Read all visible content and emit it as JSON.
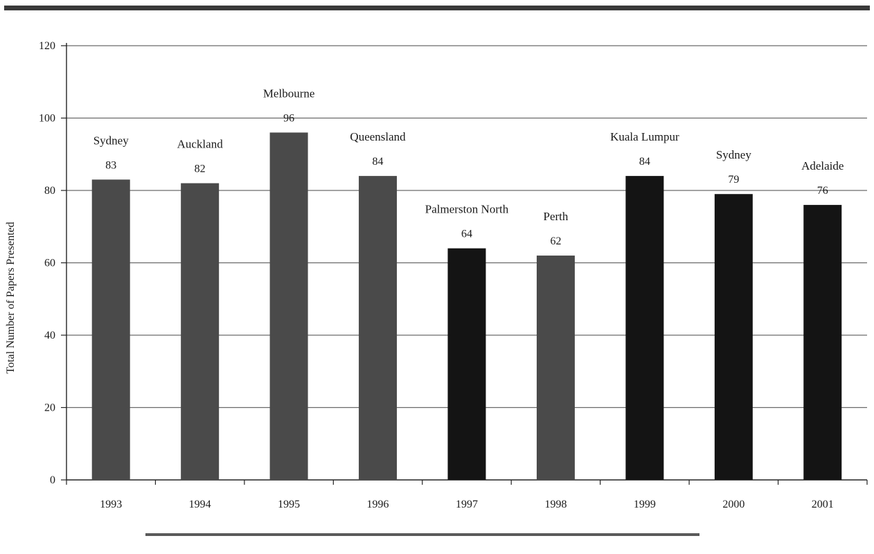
{
  "chart_data": {
    "type": "bar",
    "title": "",
    "xlabel": "",
    "ylabel": "Total Number of Papers Presented",
    "categories": [
      "1993",
      "1994",
      "1995",
      "1996",
      "1997",
      "1998",
      "1999",
      "2000",
      "2001"
    ],
    "values": [
      83,
      82,
      96,
      84,
      64,
      62,
      84,
      79,
      76
    ],
    "value_labels": [
      "83",
      "82",
      "96",
      "84",
      "64",
      "62",
      "84",
      "79",
      "76"
    ],
    "locations": [
      "Sydney",
      "Auckland",
      "Melbourne",
      "Queensland",
      "Palmerston North",
      "Perth",
      "Kuala Lumpur",
      "Sydney",
      "Adelaide"
    ],
    "ylim": [
      0,
      120
    ],
    "yticks": [
      "0",
      "20",
      "40",
      "60",
      "80",
      "100",
      "120"
    ],
    "grid": true,
    "legend": "none",
    "colors": {
      "gray_bar": "#4a4a4a",
      "black_bar": "#141414",
      "grid": "#6a6a6a",
      "text": "#1a1a1a"
    },
    "bar_shades": [
      "gray",
      "gray",
      "gray",
      "gray",
      "black",
      "gray",
      "black",
      "black",
      "black"
    ]
  }
}
